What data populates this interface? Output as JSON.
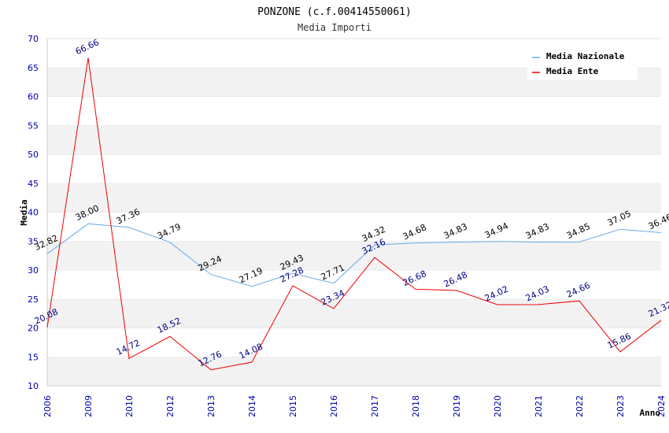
{
  "chart_data": {
    "type": "line",
    "title": "PONZONE (c.f.00414550061)",
    "subtitle": "Media Importi",
    "xlabel": "Anno",
    "ylabel": "Media",
    "ylim": [
      10,
      70
    ],
    "yticks": [
      "10",
      "15",
      "20",
      "25",
      "30",
      "35",
      "40",
      "45",
      "50",
      "55",
      "60",
      "65",
      "70"
    ],
    "categories": [
      "2006",
      "2009",
      "2010",
      "2012",
      "2013",
      "2014",
      "2015",
      "2016",
      "2017",
      "2018",
      "2019",
      "2020",
      "2021",
      "2022",
      "2023",
      "2024"
    ],
    "grid": "horizontal bands",
    "legend_position": "top-right",
    "series": [
      {
        "name": "Media Nazionale",
        "color": "#6aaae8",
        "label_color": "#000000",
        "values": [
          32.82,
          38.0,
          37.36,
          34.79,
          29.24,
          27.19,
          29.43,
          27.71,
          34.32,
          34.68,
          34.83,
          34.94,
          34.83,
          34.85,
          37.05,
          36.46
        ],
        "labels": [
          "32.82",
          "38.00",
          "37.36",
          "34.79",
          "29.24",
          "27.19",
          "29.43",
          "27.71",
          "34.32",
          "34.68",
          "34.83",
          "34.94",
          "34.83",
          "34.85",
          "37.05",
          "36.46"
        ]
      },
      {
        "name": "Media Ente",
        "color": "#ee0000",
        "label_color": "#000080",
        "values": [
          20.08,
          66.66,
          14.72,
          18.52,
          12.76,
          14.08,
          27.28,
          23.34,
          32.16,
          26.68,
          26.48,
          24.02,
          24.03,
          24.66,
          15.86,
          21.32
        ],
        "labels": [
          "20.08",
          "66.66",
          "14.72",
          "18.52",
          "12.76",
          "14.08",
          "27.28",
          "23.34",
          "32.16",
          "26.68",
          "26.48",
          "24.02",
          "24.03",
          "24.66",
          "15.86",
          "21.32"
        ]
      }
    ]
  }
}
